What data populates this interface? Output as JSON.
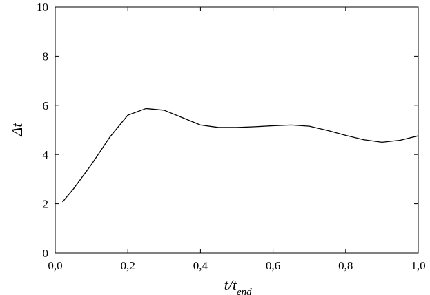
{
  "chart_data": {
    "type": "line",
    "ylabel": "Δt",
    "xlabel": "t/t",
    "xlabel_subscript": "end",
    "x": [
      0.02,
      0.05,
      0.1,
      0.15,
      0.2,
      0.25,
      0.3,
      0.35,
      0.4,
      0.45,
      0.5,
      0.55,
      0.6,
      0.65,
      0.7,
      0.75,
      0.8,
      0.85,
      0.9,
      0.95,
      1.0
    ],
    "series": [
      {
        "color": "#000000",
        "values": [
          2.07,
          2.6,
          3.6,
          4.7,
          5.6,
          5.87,
          5.8,
          5.5,
          5.2,
          5.1,
          5.1,
          5.13,
          5.17,
          5.2,
          5.15,
          4.98,
          4.78,
          4.6,
          4.5,
          4.58,
          4.76
        ]
      }
    ],
    "xlim": [
      0,
      1
    ],
    "ylim": [
      0,
      10
    ],
    "xticks": [
      {
        "value": 0,
        "label": "0,0"
      },
      {
        "value": 0.2,
        "label": "0,2"
      },
      {
        "value": 0.4,
        "label": "0,4"
      },
      {
        "value": 0.6,
        "label": "0,6"
      },
      {
        "value": 0.8,
        "label": "0,8"
      },
      {
        "value": 1,
        "label": "1,0"
      }
    ],
    "yticks": [
      0,
      2,
      4,
      6,
      8,
      10
    ]
  }
}
